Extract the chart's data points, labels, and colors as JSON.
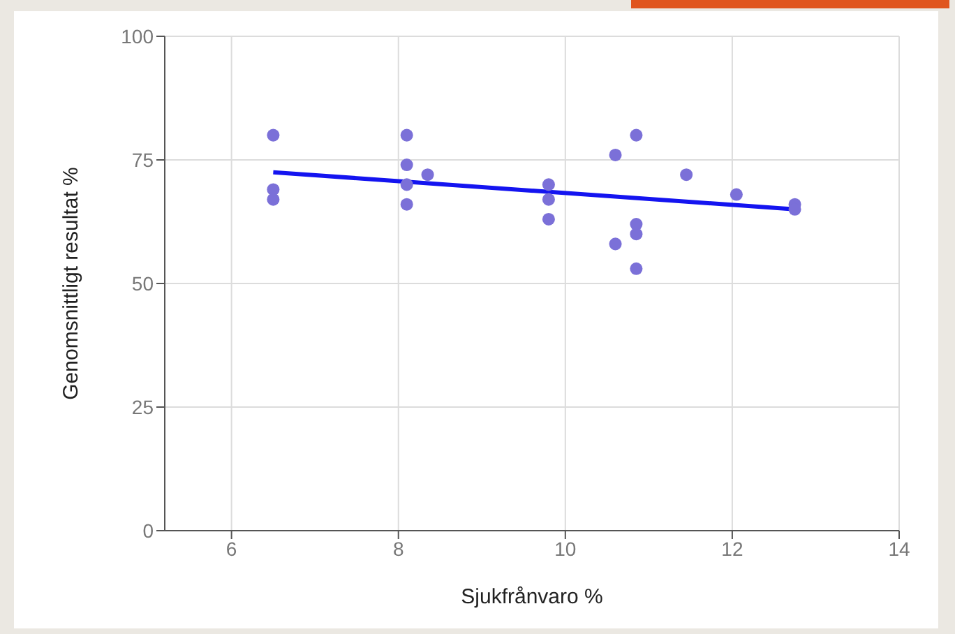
{
  "chart_data": {
    "type": "scatter",
    "xlabel": "Sjukfrånvaro %",
    "ylabel": "Genomsnittligt resultat %",
    "xlim": [
      5.2,
      14
    ],
    "xticks": [
      6,
      8,
      10,
      12,
      14
    ],
    "ylim": [
      0,
      100
    ],
    "yticks": [
      0,
      25,
      50,
      75,
      100
    ],
    "grid": true,
    "series": [
      {
        "marker": "circle",
        "color": "#7b70d8",
        "x": [
          6.5,
          6.5,
          6.5,
          8.1,
          8.1,
          8.1,
          8.1,
          8.35,
          9.8,
          9.8,
          9.8,
          10.6,
          10.6,
          10.85,
          10.85,
          10.85,
          10.85,
          11.45,
          12.05,
          12.75,
          12.75
        ],
        "values": [
          80,
          69,
          67,
          80,
          74,
          70,
          66,
          72,
          70,
          67,
          63,
          76,
          58,
          80,
          62,
          60,
          53,
          72,
          68,
          66,
          65
        ]
      },
      {
        "type": "line",
        "color": "#1414f0",
        "x": [
          6.5,
          12.75
        ],
        "values": [
          72.5,
          65
        ]
      }
    ]
  }
}
